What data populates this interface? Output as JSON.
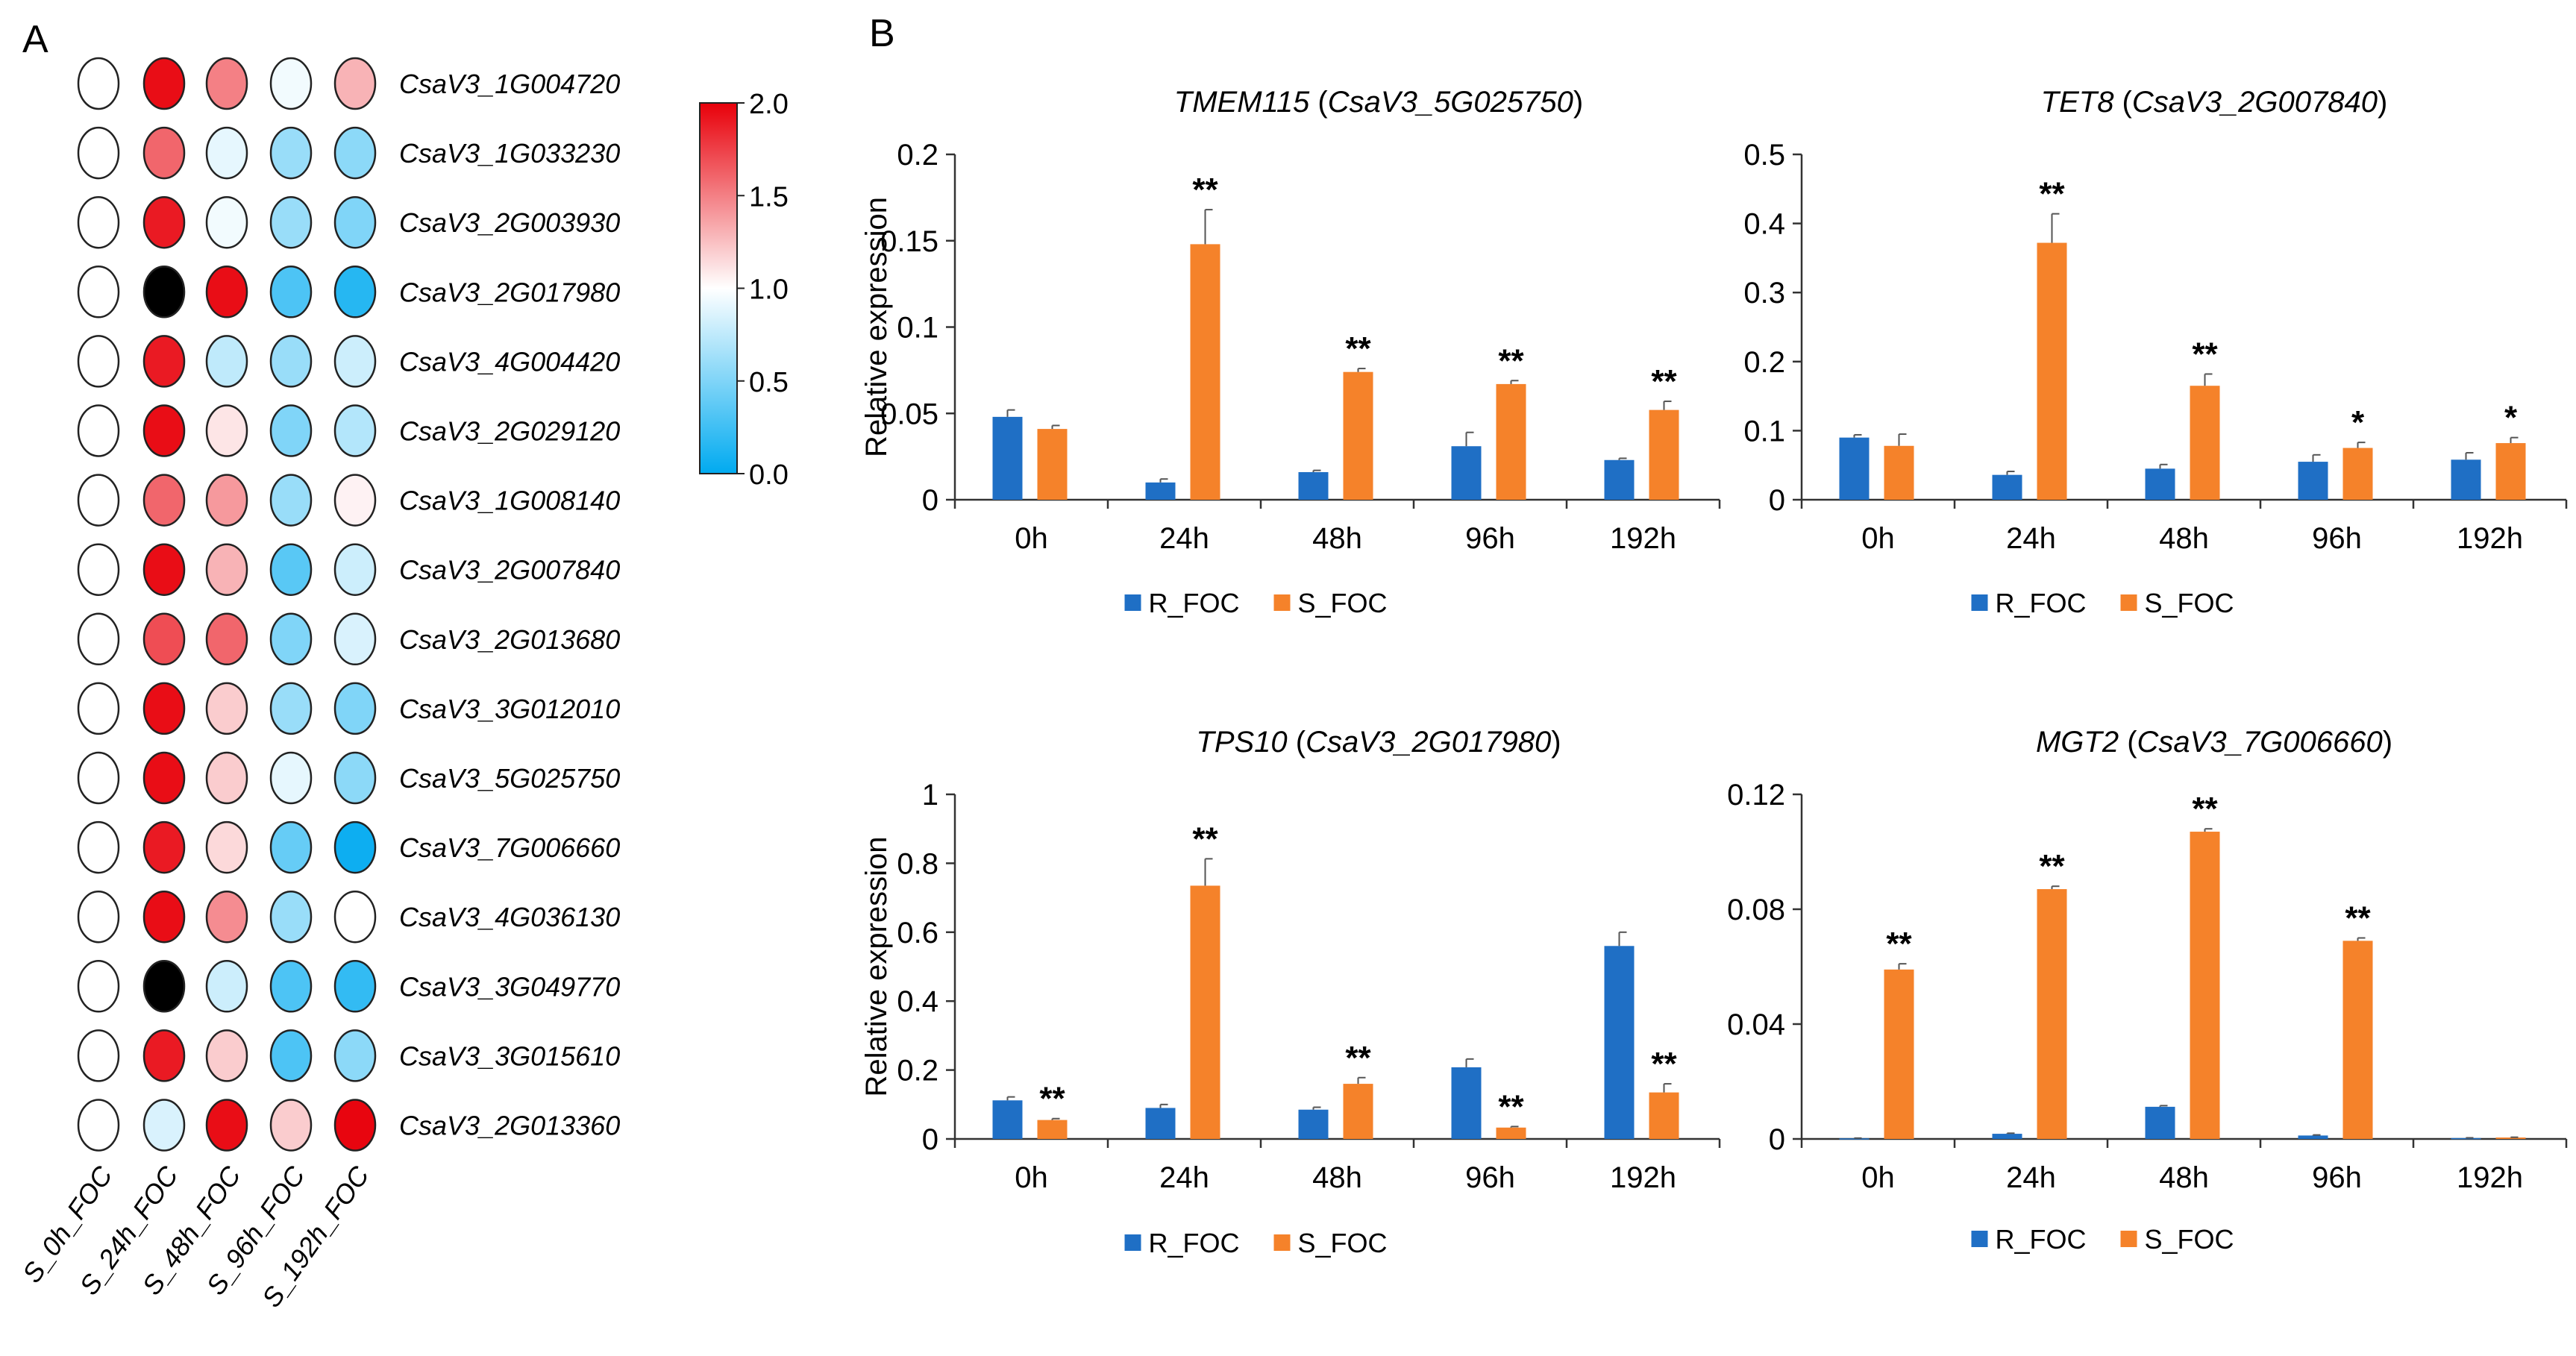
{
  "panels": {
    "a_label": "A",
    "b_label": "B"
  },
  "colors": {
    "r_foc": "#1f6fc5",
    "s_foc": "#f5822a",
    "axis": "#333333"
  },
  "chart_data": [
    {
      "type": "heatmap",
      "panel": "A",
      "columns": [
        "S_0h_FOC",
        "S_24h_FOC",
        "S_48h_FOC",
        "S_96h_FOC",
        "S_192h_FOC"
      ],
      "rows": [
        "CsaV3_1G004720",
        "CsaV3_1G033230",
        "CsaV3_2G003930",
        "CsaV3_2G017980",
        "CsaV3_4G004420",
        "CsaV3_2G029120",
        "CsaV3_1G008140",
        "CsaV3_2G007840",
        "CsaV3_2G013680",
        "CsaV3_3G012010",
        "CsaV3_5G025750",
        "CsaV3_7G006660",
        "CsaV3_4G036130",
        "CsaV3_3G049770",
        "CsaV3_3G015610",
        "CsaV3_2G013360"
      ],
      "values": [
        [
          1.0,
          1.95,
          1.5,
          0.95,
          1.3
        ],
        [
          1.0,
          1.6,
          0.9,
          0.6,
          0.55
        ],
        [
          1.0,
          1.9,
          0.95,
          0.6,
          0.5
        ],
        [
          1.0,
          3.0,
          1.95,
          0.3,
          0.15
        ],
        [
          1.0,
          1.9,
          0.75,
          0.6,
          0.8
        ],
        [
          1.0,
          1.95,
          1.1,
          0.5,
          0.7
        ],
        [
          1.0,
          1.6,
          1.4,
          0.6,
          1.05
        ],
        [
          1.0,
          1.95,
          1.3,
          0.35,
          0.8
        ],
        [
          1.0,
          1.7,
          1.6,
          0.5,
          0.85
        ],
        [
          1.0,
          1.95,
          1.2,
          0.6,
          0.5
        ],
        [
          1.0,
          1.95,
          1.2,
          0.9,
          0.55
        ],
        [
          1.0,
          1.9,
          1.15,
          0.4,
          0.05
        ],
        [
          1.0,
          1.95,
          1.45,
          0.6,
          1.0
        ],
        [
          1.0,
          3.5,
          0.8,
          0.3,
          0.2
        ],
        [
          1.0,
          1.9,
          1.2,
          0.3,
          0.55
        ],
        [
          1.0,
          0.85,
          1.95,
          1.2,
          1.98
        ]
      ],
      "colorbar": {
        "min": 0.0,
        "max": 2.0,
        "ticks": [
          "2.0",
          "1.5",
          "1.0",
          "0.5",
          "0.0"
        ]
      }
    },
    {
      "type": "bar",
      "panel": "B",
      "gene": "TMEM115",
      "gene_id": "CsaV3_5G025750",
      "ylabel": "Relative expression",
      "categories": [
        "0h",
        "24h",
        "48h",
        "96h",
        "192h"
      ],
      "ylim": [
        0,
        0.2
      ],
      "yticks": [
        "0",
        "0.05",
        "0.1",
        "0.15",
        "0.2"
      ],
      "series": [
        {
          "name": "R_FOC",
          "values": [
            0.048,
            0.01,
            0.016,
            0.031,
            0.023
          ],
          "errors": [
            0.004,
            0.002,
            0.001,
            0.008,
            0.001
          ]
        },
        {
          "name": "S_FOC",
          "values": [
            0.041,
            0.148,
            0.074,
            0.067,
            0.052
          ],
          "errors": [
            0.002,
            0.02,
            0.002,
            0.002,
            0.005
          ]
        }
      ],
      "annotations": [
        "",
        "**",
        "**",
        "**",
        "**"
      ]
    },
    {
      "type": "bar",
      "panel": "B",
      "gene": "TET8",
      "gene_id": "CsaV3_2G007840",
      "ylabel": "",
      "categories": [
        "0h",
        "24h",
        "48h",
        "96h",
        "192h"
      ],
      "ylim": [
        0,
        0.5
      ],
      "yticks": [
        "0",
        "0.1",
        "0.2",
        "0.3",
        "0.4",
        "0.5"
      ],
      "series": [
        {
          "name": "R_FOC",
          "values": [
            0.09,
            0.036,
            0.045,
            0.055,
            0.058
          ],
          "errors": [
            0.004,
            0.005,
            0.006,
            0.01,
            0.01
          ]
        },
        {
          "name": "S_FOC",
          "values": [
            0.078,
            0.372,
            0.165,
            0.075,
            0.082
          ],
          "errors": [
            0.017,
            0.042,
            0.017,
            0.008,
            0.008
          ]
        }
      ],
      "annotations": [
        "",
        "**",
        "**",
        "*",
        "*"
      ]
    },
    {
      "type": "bar",
      "panel": "B",
      "gene": "TPS10",
      "gene_id": "CsaV3_2G017980",
      "ylabel": "Relative expression",
      "categories": [
        "0h",
        "24h",
        "48h",
        "96h",
        "192h"
      ],
      "ylim": [
        0,
        1
      ],
      "yticks": [
        "0",
        "0.2",
        "0.4",
        "0.6",
        "0.8",
        "1"
      ],
      "series": [
        {
          "name": "R_FOC",
          "values": [
            0.112,
            0.09,
            0.085,
            0.208,
            0.56
          ],
          "errors": [
            0.01,
            0.01,
            0.007,
            0.024,
            0.04
          ]
        },
        {
          "name": "S_FOC",
          "values": [
            0.055,
            0.735,
            0.16,
            0.033,
            0.135
          ],
          "errors": [
            0.004,
            0.078,
            0.018,
            0.003,
            0.025
          ]
        }
      ],
      "annotations": [
        "**",
        "**",
        "**",
        "**",
        "**"
      ]
    },
    {
      "type": "bar",
      "panel": "B",
      "gene": "MGT2",
      "gene_id": "CsaV3_7G006660",
      "ylabel": "",
      "categories": [
        "0h",
        "24h",
        "48h",
        "96h",
        "192h"
      ],
      "ylim": [
        0,
        0.12
      ],
      "yticks": [
        "0",
        "0.04",
        "0.08",
        "0.12"
      ],
      "series": [
        {
          "name": "R_FOC",
          "values": [
            0.0002,
            0.0018,
            0.0112,
            0.0012,
            0.0003
          ],
          "errors": [
            0.0001,
            0.0002,
            0.0004,
            0.0002,
            0.0001
          ]
        },
        {
          "name": "S_FOC",
          "values": [
            0.059,
            0.087,
            0.107,
            0.069,
            0.0005
          ],
          "errors": [
            0.002,
            0.001,
            0.001,
            0.001,
            0.0001
          ]
        }
      ],
      "annotations": [
        "**",
        "**",
        "**",
        "**",
        ""
      ]
    }
  ]
}
